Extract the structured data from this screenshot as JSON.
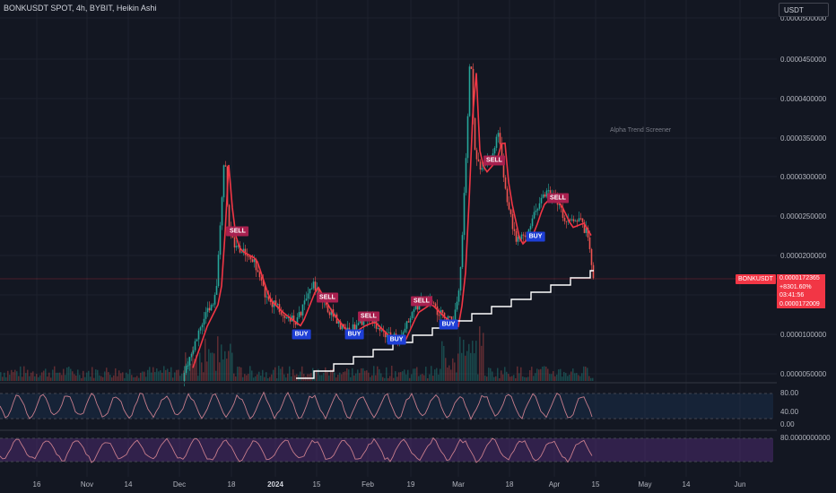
{
  "header": {
    "title": "BONKUSDT SPOT, 4h, BYBIT, Heikin Ashi"
  },
  "currency": {
    "label": "USDT"
  },
  "watermark": "Alpha Trend Screener",
  "price_axis": {
    "labels": [
      "0.0000500000",
      "0.0000450000",
      "0.0000400000",
      "0.0000350000",
      "0.0000300000",
      "0.0000250000",
      "0.0000200000",
      "0.0000100000",
      "0.0000050000"
    ]
  },
  "ticker_tag": "BONKUSDT",
  "last_price_box": {
    "price": "0.0000172365",
    "change": "+8301.60%",
    "countdown": "03:41:56",
    "alt_price": "0.0000172009"
  },
  "osc1_axis": {
    "labels": [
      "80.00",
      "40.00",
      "0.00"
    ]
  },
  "osc2_axis": {
    "labels": [
      "80.0000000000"
    ]
  },
  "time_axis": {
    "labels": [
      {
        "text": "16",
        "bold": false
      },
      {
        "text": "Nov",
        "bold": false
      },
      {
        "text": "14",
        "bold": false
      },
      {
        "text": "Dec",
        "bold": false
      },
      {
        "text": "18",
        "bold": false
      },
      {
        "text": "2024",
        "bold": true
      },
      {
        "text": "15",
        "bold": false
      },
      {
        "text": "Feb",
        "bold": false
      },
      {
        "text": "19",
        "bold": false
      },
      {
        "text": "Mar",
        "bold": false
      },
      {
        "text": "18",
        "bold": false
      },
      {
        "text": "Apr",
        "bold": false
      },
      {
        "text": "15",
        "bold": false
      },
      {
        "text": "May",
        "bold": false
      },
      {
        "text": "14",
        "bold": false
      },
      {
        "text": "Jun",
        "bold": false
      }
    ]
  },
  "signals": [
    {
      "label": "SELL",
      "kind": "sell"
    },
    {
      "label": "BUY",
      "kind": "buy"
    },
    {
      "label": "SELL",
      "kind": "sell"
    },
    {
      "label": "BUY",
      "kind": "buy"
    },
    {
      "label": "SELL",
      "kind": "sell"
    },
    {
      "label": "BUY",
      "kind": "buy"
    },
    {
      "label": "SELL",
      "kind": "sell"
    },
    {
      "label": "BUY",
      "kind": "buy"
    },
    {
      "label": "SELL",
      "kind": "sell"
    },
    {
      "label": "SELL",
      "kind": "sell"
    },
    {
      "label": "BUY",
      "kind": "buy"
    },
    {
      "label": "SELL",
      "kind": "sell"
    }
  ],
  "colors": {
    "background": "#131722",
    "up": "#26a69a",
    "down": "#ef5350",
    "trend_line": "#f23645",
    "equity": "#ffffff",
    "osc1_band": "#1e3a5f",
    "osc2_band": "#4a2a6e",
    "osc_line": "#c77d8c"
  }
}
